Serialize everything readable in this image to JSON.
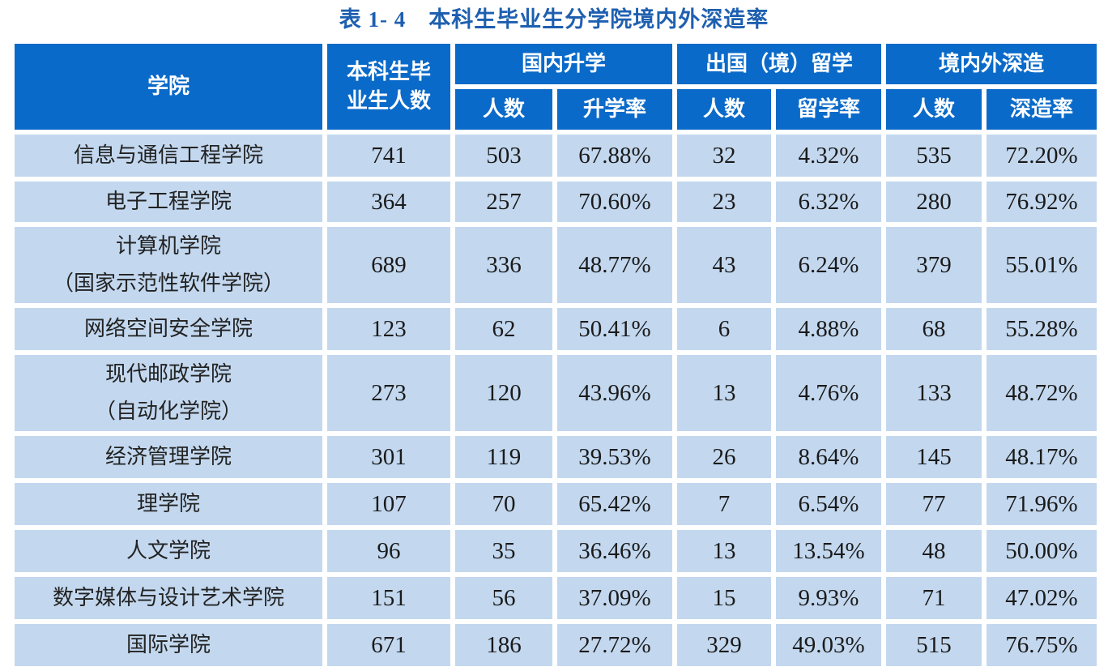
{
  "title": {
    "number": "表 1- 4",
    "text": "本科生毕业生分学院境内外深造率"
  },
  "header": {
    "college": "学院",
    "graduates": "本科生毕业生人数",
    "graduates_line1": "本科生毕",
    "graduates_line2": "业生人数",
    "domestic": "国内升学",
    "abroad": "出国（境）留学",
    "total": "境内外深造",
    "domestic_count": "人数",
    "domestic_rate": "升学率",
    "abroad_count": "人数",
    "abroad_rate": "留学率",
    "total_count": "人数",
    "total_rate": "深造率"
  },
  "colors": {
    "header_bg": "#0a6ac9",
    "cell_bg": "#c3d8ef",
    "title": "#1e5fb0"
  },
  "rows": [
    {
      "college": "信息与通信工程学院",
      "college_sub": "",
      "graduates": "741",
      "domestic_count": "503",
      "domestic_rate": "67.88%",
      "abroad_count": "32",
      "abroad_rate": "4.32%",
      "total_count": "535",
      "total_rate": "72.20%"
    },
    {
      "college": "电子工程学院",
      "college_sub": "",
      "graduates": "364",
      "domestic_count": "257",
      "domestic_rate": "70.60%",
      "abroad_count": "23",
      "abroad_rate": "6.32%",
      "total_count": "280",
      "total_rate": "76.92%"
    },
    {
      "college": "计算机学院",
      "college_sub": "（国家示范性软件学院）",
      "graduates": "689",
      "domestic_count": "336",
      "domestic_rate": "48.77%",
      "abroad_count": "43",
      "abroad_rate": "6.24%",
      "total_count": "379",
      "total_rate": "55.01%"
    },
    {
      "college": "网络空间安全学院",
      "college_sub": "",
      "graduates": "123",
      "domestic_count": "62",
      "domestic_rate": "50.41%",
      "abroad_count": "6",
      "abroad_rate": "4.88%",
      "total_count": "68",
      "total_rate": "55.28%"
    },
    {
      "college": "现代邮政学院",
      "college_sub": "（自动化学院）",
      "graduates": "273",
      "domestic_count": "120",
      "domestic_rate": "43.96%",
      "abroad_count": "13",
      "abroad_rate": "4.76%",
      "total_count": "133",
      "total_rate": "48.72%"
    },
    {
      "college": "经济管理学院",
      "college_sub": "",
      "graduates": "301",
      "domestic_count": "119",
      "domestic_rate": "39.53%",
      "abroad_count": "26",
      "abroad_rate": "8.64%",
      "total_count": "145",
      "total_rate": "48.17%"
    },
    {
      "college": "理学院",
      "college_sub": "",
      "graduates": "107",
      "domestic_count": "70",
      "domestic_rate": "65.42%",
      "abroad_count": "7",
      "abroad_rate": "6.54%",
      "total_count": "77",
      "total_rate": "71.96%"
    },
    {
      "college": "人文学院",
      "college_sub": "",
      "graduates": "96",
      "domestic_count": "35",
      "domestic_rate": "36.46%",
      "abroad_count": "13",
      "abroad_rate": "13.54%",
      "total_count": "48",
      "total_rate": "50.00%"
    },
    {
      "college": "数字媒体与设计艺术学院",
      "college_sub": "",
      "graduates": "151",
      "domestic_count": "56",
      "domestic_rate": "37.09%",
      "abroad_count": "15",
      "abroad_rate": "9.93%",
      "total_count": "71",
      "total_rate": "47.02%"
    },
    {
      "college": "国际学院",
      "college_sub": "",
      "graduates": "671",
      "domestic_count": "186",
      "domestic_rate": "27.72%",
      "abroad_count": "329",
      "abroad_rate": "49.03%",
      "total_count": "515",
      "total_rate": "76.75%"
    }
  ],
  "chart_data": {
    "type": "table",
    "title": "表 1- 4 本科生毕业生分学院境内外深造率",
    "columns": [
      "学院",
      "本科生毕业生人数",
      "国内升学-人数",
      "国内升学-升学率",
      "出国（境）留学-人数",
      "出国（境）留学-留学率",
      "境内外深造-人数",
      "境内外深造-深造率"
    ],
    "rows": [
      [
        "信息与通信工程学院",
        741,
        503,
        "67.88%",
        32,
        "4.32%",
        535,
        "72.20%"
      ],
      [
        "电子工程学院",
        364,
        257,
        "70.60%",
        23,
        "6.32%",
        280,
        "76.92%"
      ],
      [
        "计算机学院（国家示范性软件学院）",
        689,
        336,
        "48.77%",
        43,
        "6.24%",
        379,
        "55.01%"
      ],
      [
        "网络空间安全学院",
        123,
        62,
        "50.41%",
        6,
        "4.88%",
        68,
        "55.28%"
      ],
      [
        "现代邮政学院（自动化学院）",
        273,
        120,
        "43.96%",
        13,
        "4.76%",
        133,
        "48.72%"
      ],
      [
        "经济管理学院",
        301,
        119,
        "39.53%",
        26,
        "8.64%",
        145,
        "48.17%"
      ],
      [
        "理学院",
        107,
        70,
        "65.42%",
        7,
        "6.54%",
        77,
        "71.96%"
      ],
      [
        "人文学院",
        96,
        35,
        "36.46%",
        13,
        "13.54%",
        48,
        "50.00%"
      ],
      [
        "数字媒体与设计艺术学院",
        151,
        56,
        "37.09%",
        15,
        "9.93%",
        71,
        "47.02%"
      ],
      [
        "国际学院",
        671,
        186,
        "27.72%",
        329,
        "49.03%",
        515,
        "76.75%"
      ]
    ]
  }
}
